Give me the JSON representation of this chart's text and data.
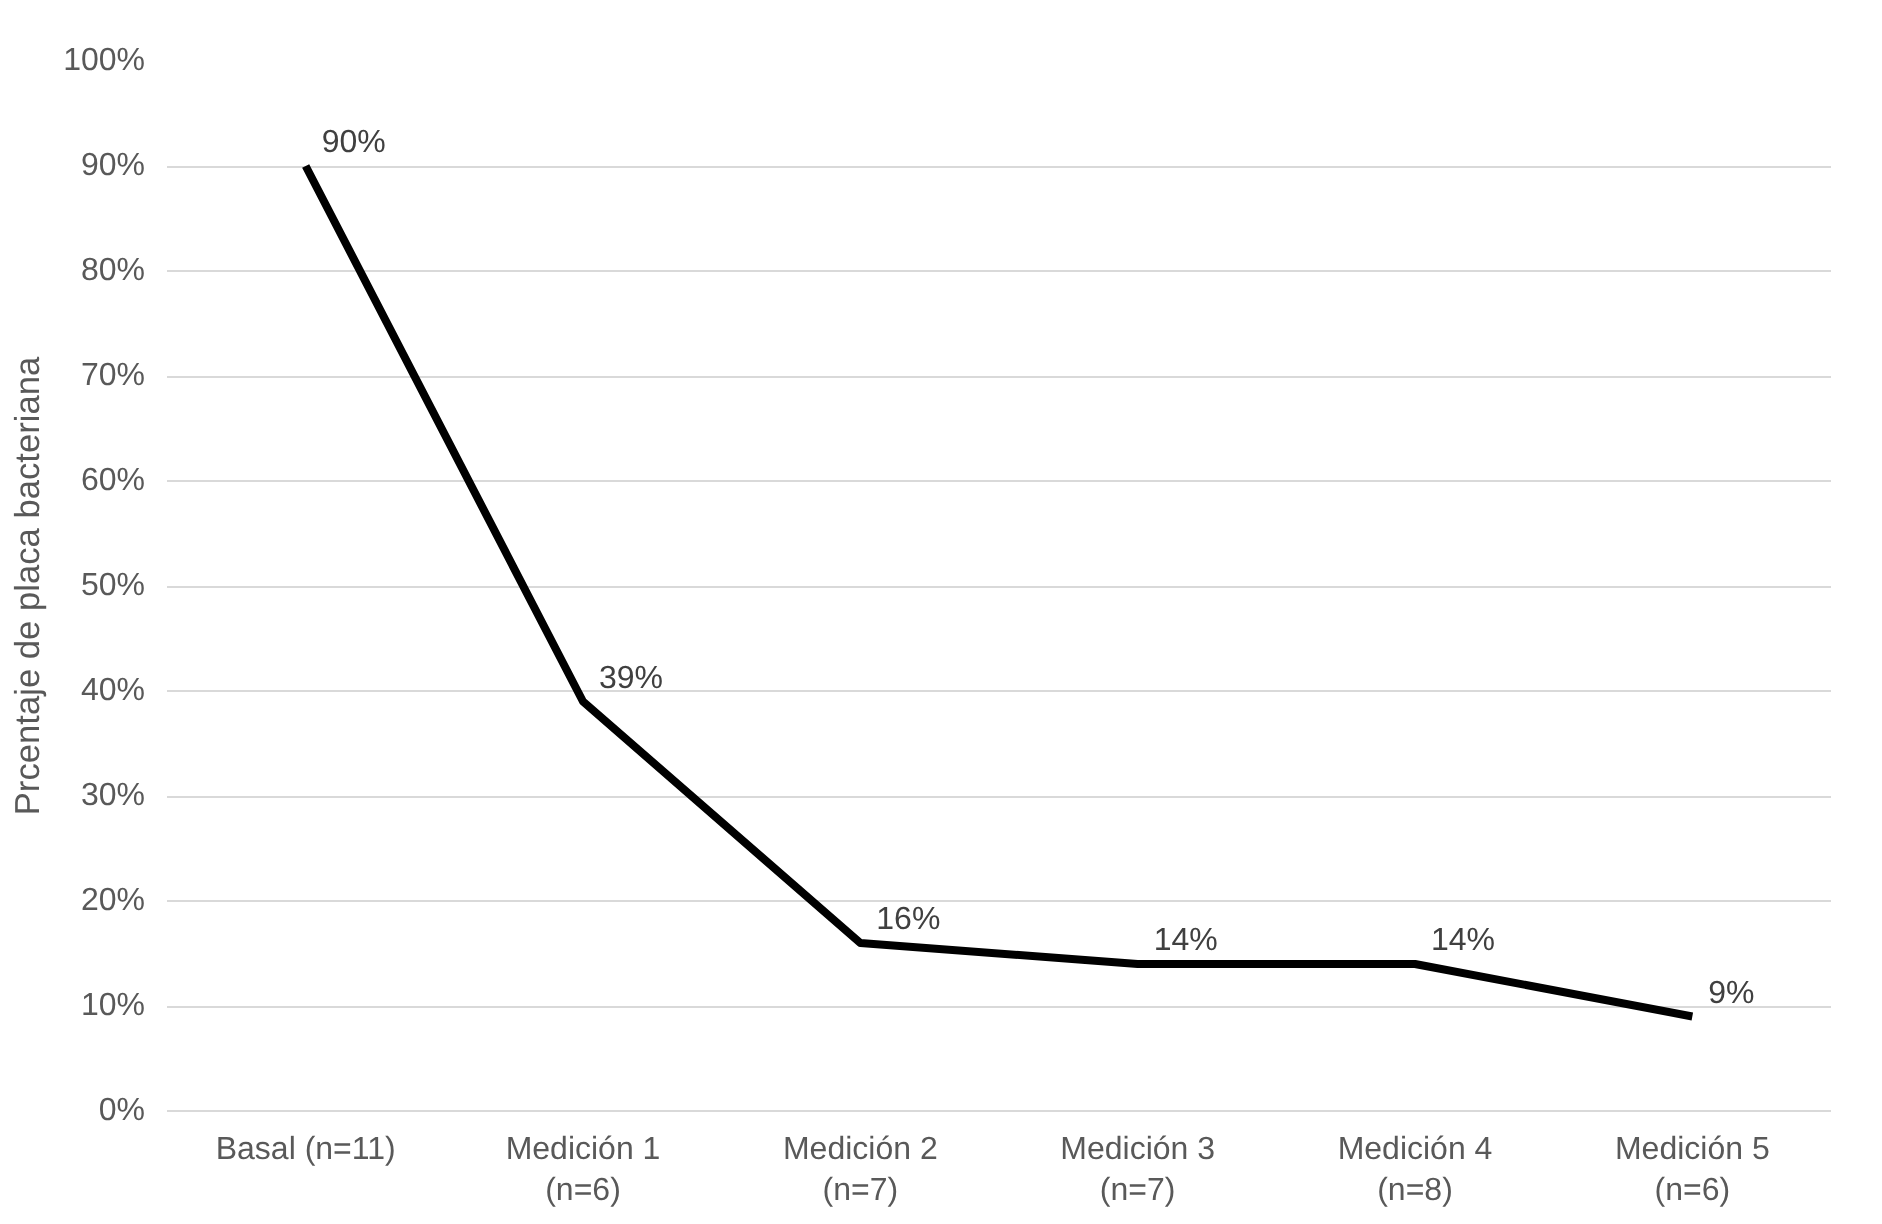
{
  "chart_data": {
    "type": "line",
    "ylabel": "Prcentaje de placa bacteriana",
    "categories": [
      "Basal (n=11)",
      "Medición 1\n(n=6)",
      "Medición 2\n(n=7)",
      "Medición 3\n(n=7)",
      "Medición 4\n(n=8)",
      "Medición 5\n(n=6)"
    ],
    "series": [
      {
        "color": "#000000",
        "values": [
          90,
          39,
          16,
          14,
          14,
          9
        ],
        "value_labels": [
          "90%",
          "39%",
          "16%",
          "14%",
          "14%",
          "9%"
        ]
      }
    ],
    "ylim": [
      0,
      100
    ],
    "yticks": [
      {
        "value": 0,
        "label": "0%"
      },
      {
        "value": 10,
        "label": "10%"
      },
      {
        "value": 20,
        "label": "20%"
      },
      {
        "value": 30,
        "label": "30%"
      },
      {
        "value": 40,
        "label": "40%"
      },
      {
        "value": 50,
        "label": "50%"
      },
      {
        "value": 60,
        "label": "60%"
      },
      {
        "value": 70,
        "label": "70%"
      },
      {
        "value": 80,
        "label": "80%"
      },
      {
        "value": 90,
        "label": "90%"
      },
      {
        "value": 100,
        "label": "100%"
      }
    ],
    "grid": "y",
    "marker": "none",
    "line_style": "solid"
  }
}
